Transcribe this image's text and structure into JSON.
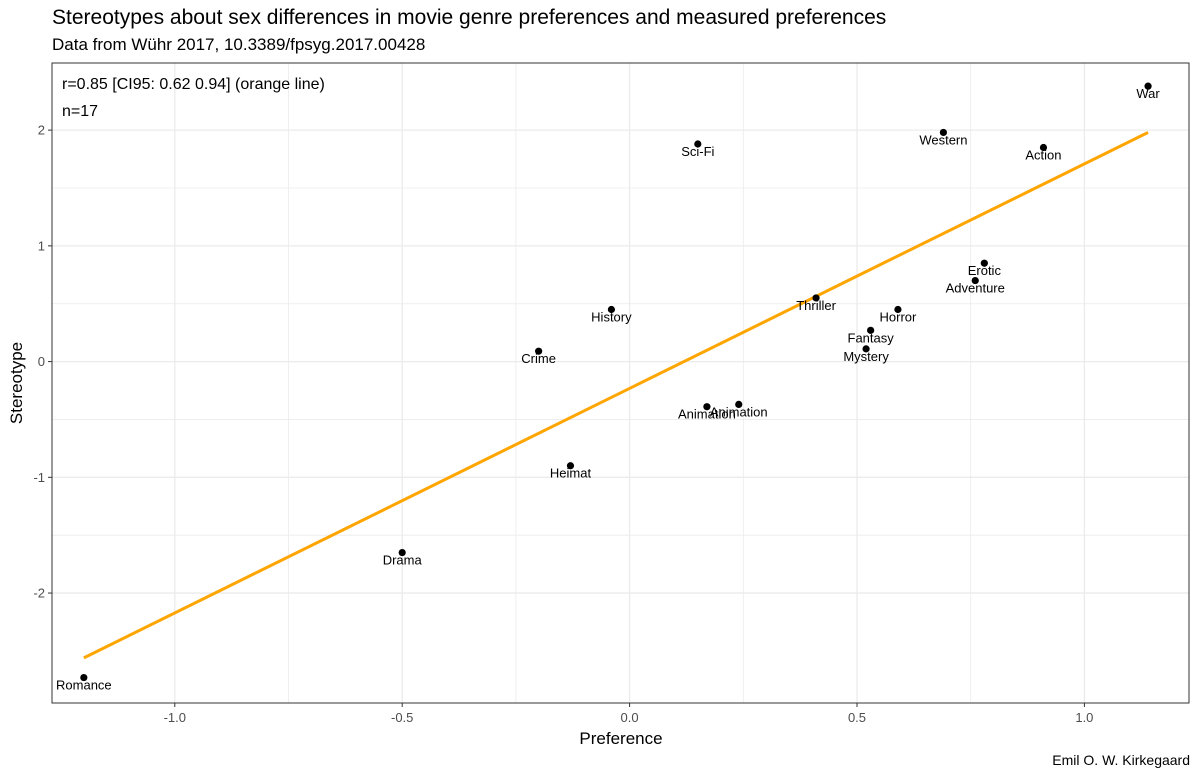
{
  "header": {
    "title": "Stereotypes about sex differences in movie genre preferences and measured preferences",
    "subtitle": "Data from Wühr 2017, 10.3389/fpsyg.2017.00428"
  },
  "caption": "Emil O. W. Kirkegaard",
  "colors": {
    "line": "#FFA500",
    "point": "#000000",
    "grid": "#ebebeb",
    "panel_border": "#333333"
  },
  "chart_data": {
    "type": "scatter",
    "title": "Stereotypes about sex differences in movie genre preferences and measured preferences",
    "xlabel": "Preference",
    "ylabel": "Stereotype",
    "xlim": [
      -1.27,
      1.23
    ],
    "ylim": [
      -2.95,
      2.58
    ],
    "xticks": [
      -1.0,
      -0.5,
      0.0,
      0.5,
      1.0
    ],
    "xtick_labels": [
      "-1.0",
      "-0.5",
      "0.0",
      "0.5",
      "1.0"
    ],
    "yticks": [
      -2,
      -1,
      0,
      1,
      2
    ],
    "ytick_labels": [
      "-2",
      "-1",
      "0",
      "1",
      "2"
    ],
    "grid": true,
    "annotations": [
      "r=0.85 [CI95: 0.62 0.94] (orange line)",
      "n=17"
    ],
    "fit_line": {
      "x": [
        -1.2,
        1.14
      ],
      "y": [
        -2.56,
        1.98
      ]
    },
    "points": [
      {
        "label": "War",
        "x": 1.14,
        "y": 2.38
      },
      {
        "label": "Sci-Fi",
        "x": 0.15,
        "y": 1.88
      },
      {
        "label": "Western",
        "x": 0.69,
        "y": 1.98
      },
      {
        "label": "Action",
        "x": 0.91,
        "y": 1.85
      },
      {
        "label": "Erotic",
        "x": 0.78,
        "y": 0.85
      },
      {
        "label": "Adventure",
        "x": 0.76,
        "y": 0.7
      },
      {
        "label": "History",
        "x": -0.04,
        "y": 0.45
      },
      {
        "label": "Thriller",
        "x": 0.41,
        "y": 0.55
      },
      {
        "label": "Horror",
        "x": 0.59,
        "y": 0.45
      },
      {
        "label": "Fantasy",
        "x": 0.53,
        "y": 0.27
      },
      {
        "label": "Mystery",
        "x": 0.52,
        "y": 0.11
      },
      {
        "label": "Crime",
        "x": -0.2,
        "y": 0.09
      },
      {
        "label": "Animation",
        "x": 0.24,
        "y": -0.37
      },
      {
        "label": "Animation",
        "x": 0.17,
        "y": -0.39
      },
      {
        "label": "Heimat",
        "x": -0.13,
        "y": -0.9
      },
      {
        "label": "Drama",
        "x": -0.5,
        "y": -1.65
      },
      {
        "label": "Romance",
        "x": -1.2,
        "y": -2.73
      }
    ]
  }
}
